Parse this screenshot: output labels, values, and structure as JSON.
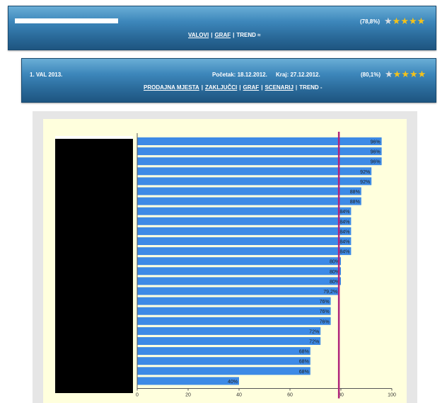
{
  "top_panel": {
    "rating": "(78,8%)",
    "stars": {
      "filled": 4,
      "total": 5
    },
    "nav": {
      "valovi": "VALOVI",
      "graf": "GRAF",
      "trend": "TREND ≈"
    }
  },
  "wave_panel": {
    "wave_label": "1. VAL 2013.",
    "start": "Početak: 18.12.2012.",
    "end": "Kraj: 27.12.2012.",
    "rating": "(80,1%)",
    "stars": {
      "filled": 4,
      "total": 5
    },
    "nav": {
      "prodajna": "PRODAJNA MJESTA",
      "zakljucci": "ZAKLJUČCI",
      "graf": "GRAF",
      "scenarij": "SCENARIJ",
      "trend": "TREND -"
    }
  },
  "colors": {
    "bar": "#3d8ae6",
    "reference_line": "#b0237a",
    "chart_bg": "#ffffdd",
    "star": "#f4c21b"
  },
  "chart_data": {
    "type": "bar",
    "orientation": "horizontal",
    "values": [
      96,
      96,
      96,
      92,
      92,
      88,
      88,
      84,
      84,
      84,
      84,
      84,
      80,
      80,
      80,
      79.2,
      76,
      76,
      76,
      72,
      72,
      68,
      68,
      68,
      40
    ],
    "value_labels": [
      "96%",
      "96%",
      "96%",
      "92%",
      "92%",
      "88%",
      "88%",
      "84%",
      "84%",
      "84%",
      "84%",
      "84%",
      "80%",
      "80%",
      "80%",
      "79,2%",
      "76%",
      "76%",
      "76%",
      "72%",
      "72%",
      "68%",
      "68%",
      "68%",
      "40%"
    ],
    "reference_value": 79.2,
    "xlim": [
      0,
      100
    ],
    "x_ticks": [
      0,
      20,
      40,
      60,
      80,
      100
    ],
    "grid": false,
    "category_labels_redacted": true
  }
}
